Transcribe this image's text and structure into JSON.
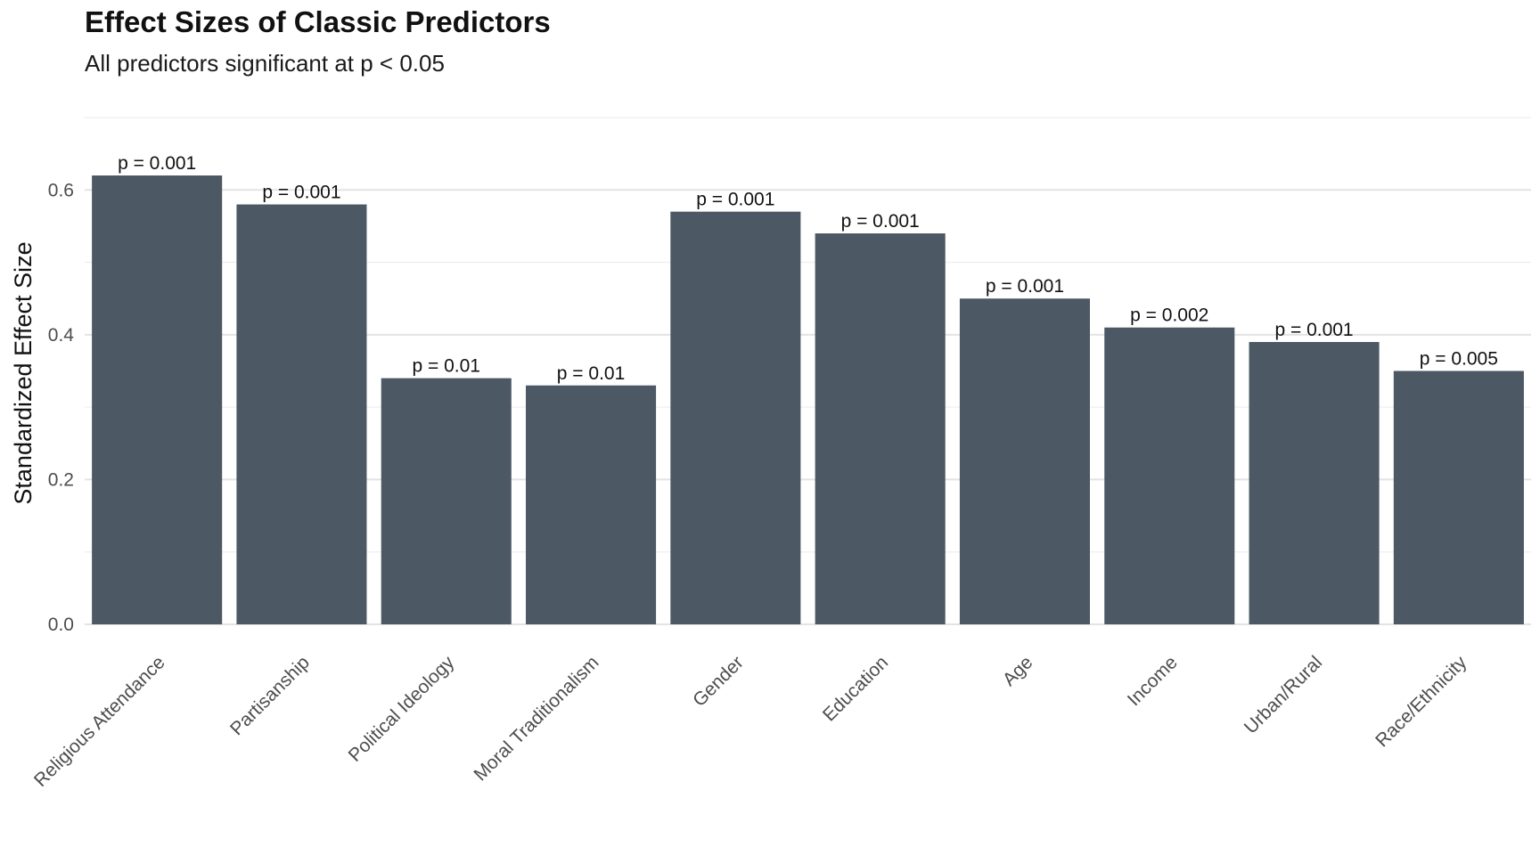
{
  "chart_data": {
    "type": "bar",
    "title": "Effect Sizes of Classic Predictors",
    "subtitle": "All predictors significant at p < 0.05",
    "xlabel": "",
    "ylabel": "Standardized Effect Size",
    "ylim": [
      0,
      0.7
    ],
    "yticks": [
      "0.0",
      "0.2",
      "0.4",
      "0.6"
    ],
    "ytick_values": [
      0,
      0.2,
      0.4,
      0.6
    ],
    "grid": true,
    "legend": "none",
    "bar_color": "#4d5865",
    "categories": [
      "Religious Attendance",
      "Partisanship",
      "Political Ideology",
      "Moral Traditionalism",
      "Gender",
      "Education",
      "Age",
      "Income",
      "Urban/Rural",
      "Race/Ethnicity"
    ],
    "values": [
      0.62,
      0.58,
      0.34,
      0.33,
      0.57,
      0.54,
      0.45,
      0.41,
      0.39,
      0.35
    ],
    "data_labels": [
      "p = 0.001",
      "p = 0.001",
      "p = 0.01",
      "p = 0.01",
      "p = 0.001",
      "p = 0.001",
      "p = 0.001",
      "p = 0.002",
      "p = 0.001",
      "p = 0.005"
    ]
  }
}
